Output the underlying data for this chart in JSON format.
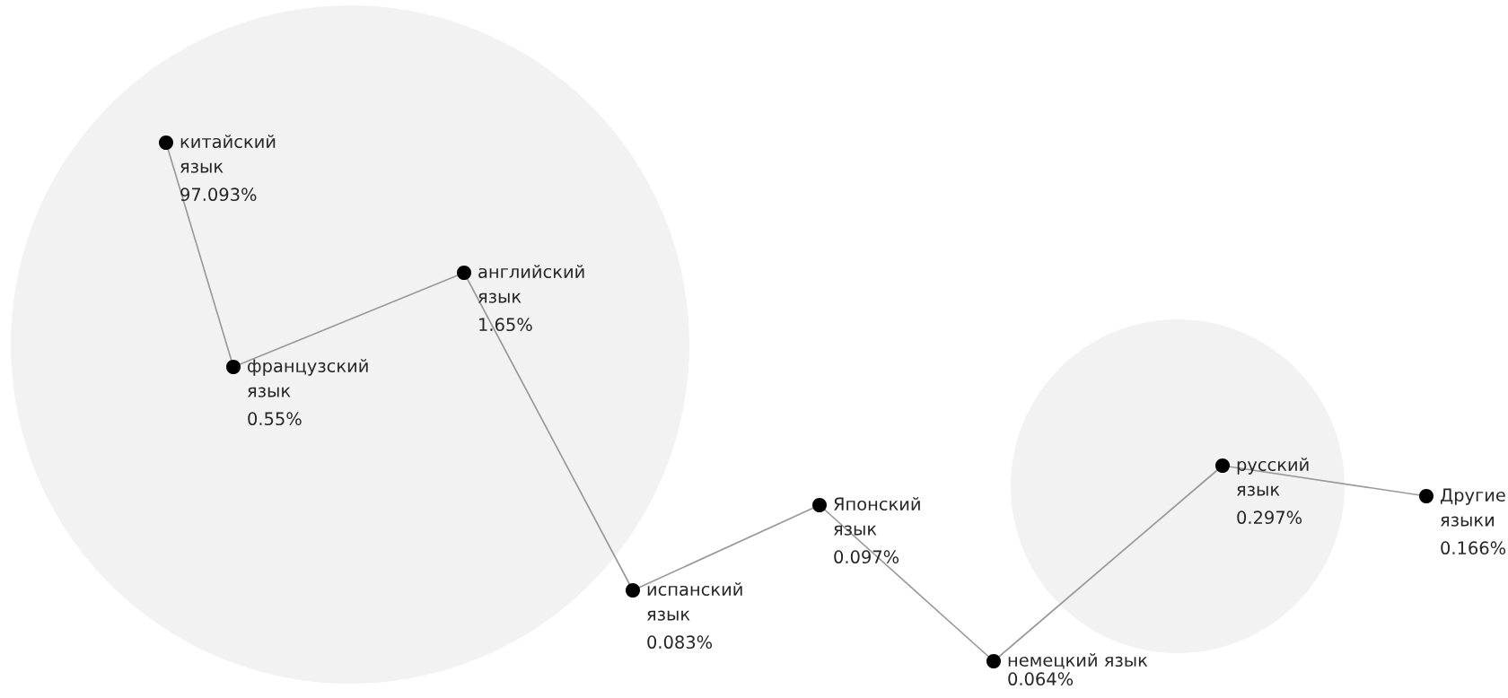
{
  "chart_data": {
    "type": "other",
    "categories": [
      "китайский язык",
      "французский язык",
      "английский язык",
      "испанский язык",
      "Японский язык",
      "немецкий язык",
      "русский язык",
      "Другие языки"
    ],
    "values": [
      97.093,
      0.55,
      1.65,
      0.083,
      0.097,
      0.064,
      0.297,
      0.166
    ],
    "value_labels": [
      "97.093%",
      "0.55%",
      "1.65%",
      "0.083%",
      "0.097%",
      "0.064%",
      "0.297%",
      "0.166%"
    ]
  }
}
